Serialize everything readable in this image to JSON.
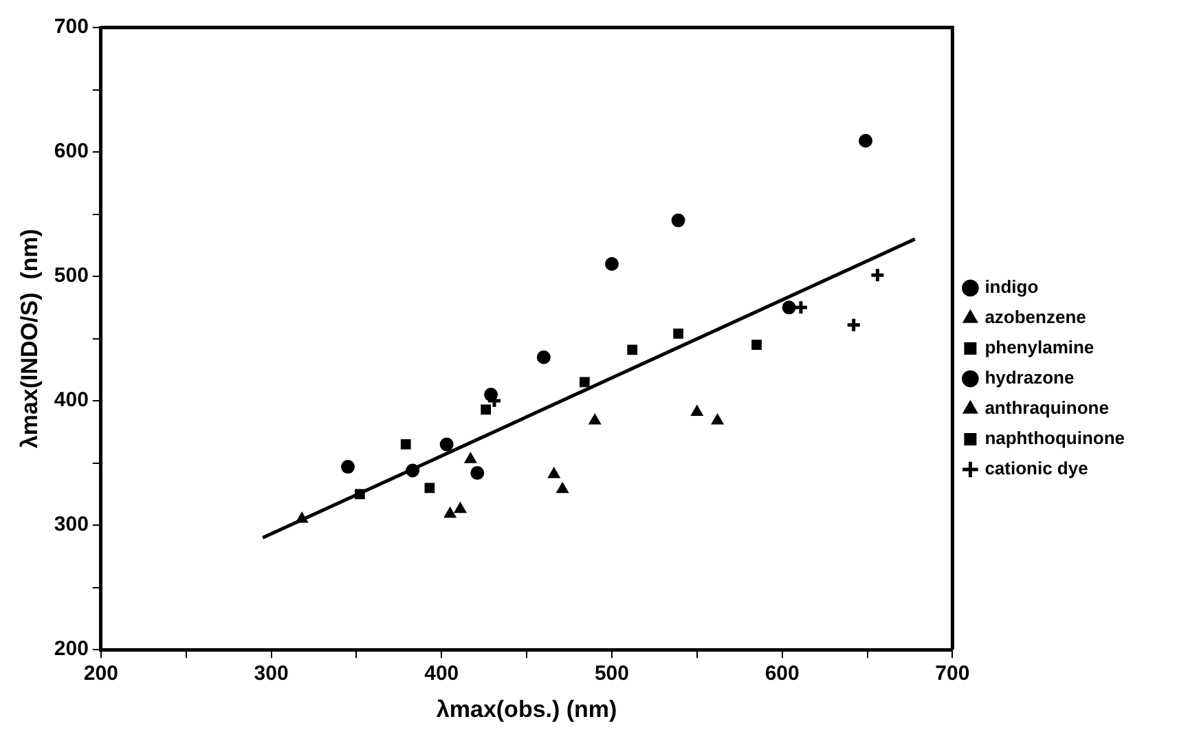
{
  "chart_data": {
    "type": "scatter",
    "xlabel": "λmax(obs.) (nm)",
    "ylabel": "λmax(INDO/S)  (nm)",
    "xlim": [
      200,
      700
    ],
    "ylim": [
      200,
      700
    ],
    "xticks": [
      200,
      {
        "value": 250,
        "label": null
      },
      300,
      {
        "value": 350,
        "label": null
      },
      400,
      {
        "value": 450,
        "label": null
      },
      500,
      {
        "value": 550,
        "label": null
      },
      600,
      {
        "value": 650,
        "label": null
      },
      700
    ],
    "yticks": [
      200,
      {
        "value": 250,
        "label": null
      },
      300,
      {
        "value": 350,
        "label": null
      },
      400,
      {
        "value": 450,
        "label": null
      },
      500,
      {
        "value": 550,
        "label": null
      },
      600,
      {
        "value": 650,
        "label": null
      },
      700
    ],
    "grid": false,
    "legend": "right",
    "series": [
      {
        "name": "indigo",
        "color": "#000000",
        "marker": "circle",
        "x": [
          421,
          604,
          649
        ],
        "values": [
          342,
          475,
          609
        ]
      },
      {
        "name": "azobenzene",
        "color": "#000000",
        "marker": "triangle",
        "x": [
          318,
          405,
          411,
          417
        ],
        "values": [
          305,
          309,
          313,
          353
        ]
      },
      {
        "name": "phenylamine",
        "color": "#000000",
        "marker": "square",
        "x": [
          352,
          393
        ],
        "values": [
          325,
          330
        ]
      },
      {
        "name": "hydrazone",
        "color": "#000000",
        "marker": "circle",
        "x": [
          345,
          383,
          403,
          429,
          460,
          500,
          539
        ],
        "values": [
          347,
          344,
          365,
          405,
          435,
          510,
          545
        ]
      },
      {
        "name": "anthraquinone",
        "color": "#000000",
        "marker": "triangle",
        "x": [
          466,
          471,
          490,
          550,
          562
        ],
        "values": [
          341,
          329,
          384,
          391,
          384
        ]
      },
      {
        "name": "naphthoquinone",
        "color": "#000000",
        "marker": "square",
        "x": [
          379,
          426,
          484,
          512,
          539,
          585
        ],
        "values": [
          365,
          393,
          415,
          441,
          454,
          445
        ]
      },
      {
        "name": "cationic dye",
        "color": "#000000",
        "marker": "cross",
        "x": [
          431,
          611,
          642,
          656
        ],
        "values": [
          400,
          475,
          461,
          501
        ]
      },
      {
        "type": "line",
        "color": "#000000",
        "marker": "none",
        "line_style": "solid",
        "x": [
          295,
          678
        ],
        "values": [
          290,
          530
        ]
      }
    ]
  }
}
